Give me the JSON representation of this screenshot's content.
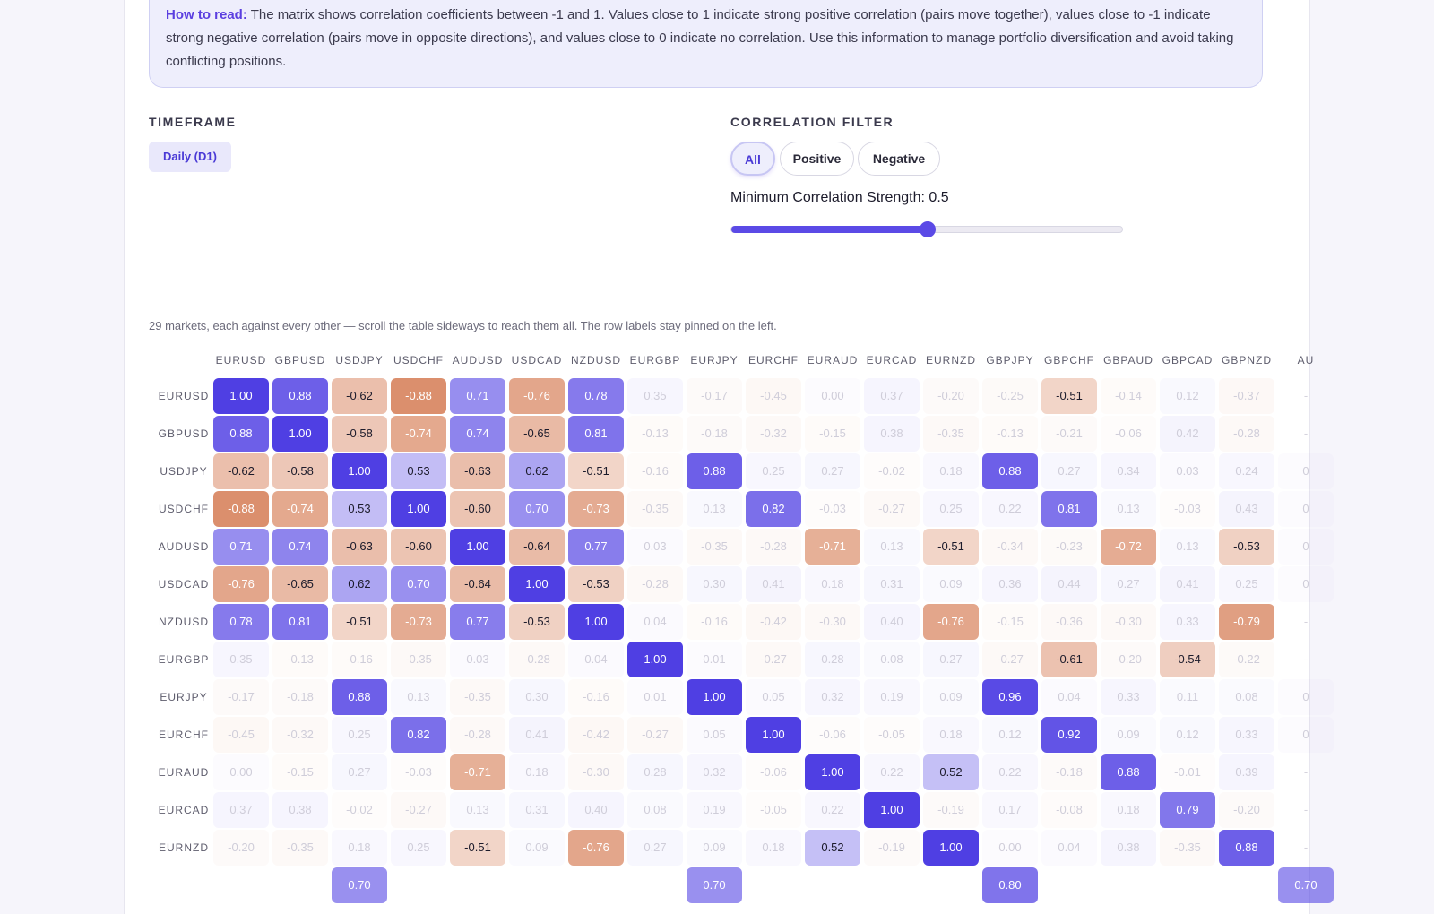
{
  "info": {
    "lead": "How to read:",
    "text": " The matrix shows correlation coefficients between -1 and 1. Values close to 1 indicate strong positive correlation (pairs move together), values close to -1 indicate strong negative correlation (pairs move in opposite directions), and values close to 0 indicate no correlation. Use this information to manage portfolio diversification and avoid taking conflicting positions."
  },
  "timeframe": {
    "label": "TIMEFRAME",
    "selected": "Daily (D1)"
  },
  "filter": {
    "label": "CORRELATION FILTER",
    "options": [
      "All",
      "Positive",
      "Negative"
    ],
    "active": "All"
  },
  "strength": {
    "label": "Minimum Correlation Strength: 0.5",
    "value": 0.5,
    "min": 0,
    "max": 1
  },
  "note": "29 markets, each against every other — scroll the table sideways to reach them all. The row labels stay pinned on the left.",
  "colors": {
    "positive": "#4f3fe3",
    "negative": "#d4784f",
    "accent": "#5b4ae6"
  },
  "matrix": {
    "columns": [
      "EURUSD",
      "GBPUSD",
      "USDJPY",
      "USDCHF",
      "AUDUSD",
      "USDCAD",
      "NZDUSD",
      "EURGBP",
      "EURJPY",
      "EURCHF",
      "EURAUD",
      "EURCAD",
      "EURNZD",
      "GBPJPY",
      "GBPCHF",
      "GBPAUD",
      "GBPCAD",
      "GBPNZD",
      "AU"
    ],
    "rows": [
      {
        "label": "EURUSD",
        "values": [
          "1.00",
          "0.88",
          "-0.62",
          "-0.88",
          "0.71",
          "-0.76",
          "0.78",
          "0.35",
          "-0.17",
          "-0.45",
          "0.00",
          "0.37",
          "-0.20",
          "-0.25",
          "-0.51",
          "-0.14",
          "0.12",
          "-0.37",
          "-"
        ]
      },
      {
        "label": "GBPUSD",
        "values": [
          "0.88",
          "1.00",
          "-0.58",
          "-0.74",
          "0.74",
          "-0.65",
          "0.81",
          "-0.13",
          "-0.18",
          "-0.32",
          "-0.15",
          "0.38",
          "-0.35",
          "-0.13",
          "-0.21",
          "-0.06",
          "0.42",
          "-0.28",
          "-"
        ]
      },
      {
        "label": "USDJPY",
        "values": [
          "-0.62",
          "-0.58",
          "1.00",
          "0.53",
          "-0.63",
          "0.62",
          "-0.51",
          "-0.16",
          "0.88",
          "0.25",
          "0.27",
          "-0.02",
          "0.18",
          "0.88",
          "0.27",
          "0.34",
          "0.03",
          "0.24",
          "0"
        ]
      },
      {
        "label": "USDCHF",
        "values": [
          "-0.88",
          "-0.74",
          "0.53",
          "1.00",
          "-0.60",
          "0.70",
          "-0.73",
          "-0.35",
          "0.13",
          "0.82",
          "-0.03",
          "-0.27",
          "0.25",
          "0.22",
          "0.81",
          "0.13",
          "-0.03",
          "0.43",
          "0"
        ]
      },
      {
        "label": "AUDUSD",
        "values": [
          "0.71",
          "0.74",
          "-0.63",
          "-0.60",
          "1.00",
          "-0.64",
          "0.77",
          "0.03",
          "-0.35",
          "-0.28",
          "-0.71",
          "0.13",
          "-0.51",
          "-0.34",
          "-0.23",
          "-0.72",
          "0.13",
          "-0.53",
          "0"
        ]
      },
      {
        "label": "USDCAD",
        "values": [
          "-0.76",
          "-0.65",
          "0.62",
          "0.70",
          "-0.64",
          "1.00",
          "-0.53",
          "-0.28",
          "0.30",
          "0.41",
          "0.18",
          "0.31",
          "0.09",
          "0.36",
          "0.44",
          "0.27",
          "0.41",
          "0.25",
          "0"
        ]
      },
      {
        "label": "NZDUSD",
        "values": [
          "0.78",
          "0.81",
          "-0.51",
          "-0.73",
          "0.77",
          "-0.53",
          "1.00",
          "0.04",
          "-0.16",
          "-0.42",
          "-0.30",
          "0.40",
          "-0.76",
          "-0.15",
          "-0.36",
          "-0.30",
          "0.33",
          "-0.79",
          "-"
        ]
      },
      {
        "label": "EURGBP",
        "values": [
          "0.35",
          "-0.13",
          "-0.16",
          "-0.35",
          "0.03",
          "-0.28",
          "0.04",
          "1.00",
          "0.01",
          "-0.27",
          "0.28",
          "0.08",
          "0.27",
          "-0.27",
          "-0.61",
          "-0.20",
          "-0.54",
          "-0.22",
          "-"
        ]
      },
      {
        "label": "EURJPY",
        "values": [
          "-0.17",
          "-0.18",
          "0.88",
          "0.13",
          "-0.35",
          "0.30",
          "-0.16",
          "0.01",
          "1.00",
          "0.05",
          "0.32",
          "0.19",
          "0.09",
          "0.96",
          "0.04",
          "0.33",
          "0.11",
          "0.08",
          "0"
        ]
      },
      {
        "label": "EURCHF",
        "values": [
          "-0.45",
          "-0.32",
          "0.25",
          "0.82",
          "-0.28",
          "0.41",
          "-0.42",
          "-0.27",
          "0.05",
          "1.00",
          "-0.06",
          "-0.05",
          "0.18",
          "0.12",
          "0.92",
          "0.09",
          "0.12",
          "0.33",
          "0"
        ]
      },
      {
        "label": "EURAUD",
        "values": [
          "0.00",
          "-0.15",
          "0.27",
          "-0.03",
          "-0.71",
          "0.18",
          "-0.30",
          "0.28",
          "0.32",
          "-0.06",
          "1.00",
          "0.22",
          "0.52",
          "0.22",
          "-0.18",
          "0.88",
          "-0.01",
          "0.39",
          "-"
        ]
      },
      {
        "label": "EURCAD",
        "values": [
          "0.37",
          "0.38",
          "-0.02",
          "-0.27",
          "0.13",
          "0.31",
          "0.40",
          "0.08",
          "0.19",
          "-0.05",
          "0.22",
          "1.00",
          "-0.19",
          "0.17",
          "-0.08",
          "0.18",
          "0.79",
          "-0.20",
          "-"
        ]
      },
      {
        "label": "EURNZD",
        "values": [
          "-0.20",
          "-0.35",
          "0.18",
          "0.25",
          "-0.51",
          "0.09",
          "-0.76",
          "0.27",
          "0.09",
          "0.18",
          "0.52",
          "-0.19",
          "1.00",
          "0.00",
          "0.04",
          "0.38",
          "-0.35",
          "0.88",
          "-"
        ]
      },
      {
        "label": "",
        "values": [
          "",
          "",
          "0.70",
          "",
          "",
          "",
          "",
          "",
          "0.70",
          "",
          "",
          "",
          "",
          "0.80",
          "",
          "",
          "",
          "",
          "0.70"
        ]
      }
    ]
  }
}
